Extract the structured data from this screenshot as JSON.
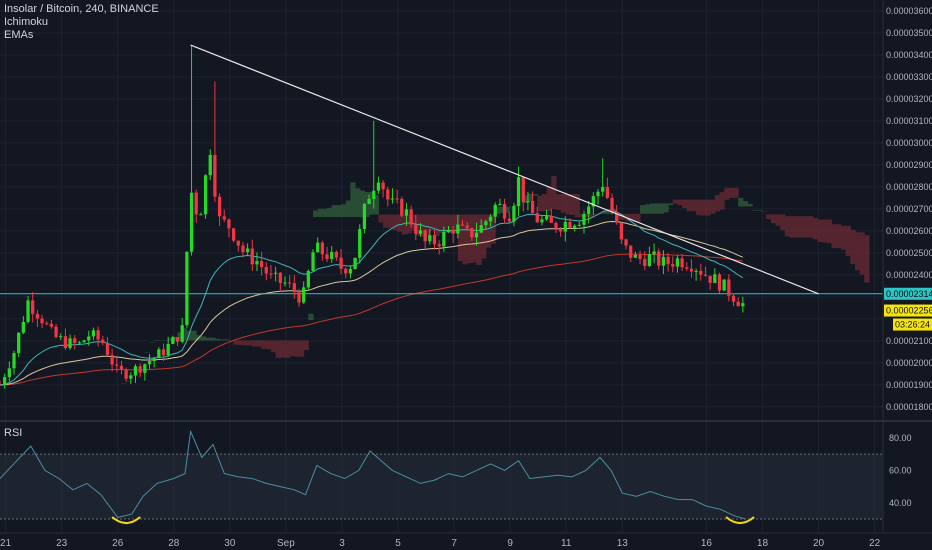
{
  "legend": {
    "symbol": "Insolar / Bitcoin, 240, BINANCE",
    "ichimoku": "Ichimoku",
    "emas": "EMAs"
  },
  "rsi_label": "RSI",
  "price_labels": {
    "horizontal_line": "0.00002314",
    "last_price": "0.00002256",
    "countdown": "03:26:24"
  },
  "colors": {
    "background": "#131722",
    "grid": "#1e2230",
    "up": "#26d926",
    "down": "#f23645",
    "trendline": "#e8e8e8",
    "hline": "#2ec5c5",
    "ema_fast": "#3fb6b6",
    "ema_mid": "#d9c89a",
    "ema_slow": "#c0392b",
    "cloud_bull": "#2f5f3a",
    "cloud_bear": "#6b2a34",
    "rsi_line": "#4a8fa0",
    "rsi_band": "#262b3b",
    "marker": "#f5d90a",
    "last_price_bg": "#f5e50a"
  },
  "chart_data": {
    "type": "candlestick",
    "title": "Insolar / Bitcoin, 240, BINANCE",
    "price_axis": {
      "ylim": [
        1.74e-05,
        3.65e-05
      ],
      "ticks": [
        "0.00001800",
        "0.00001900",
        "0.00002000",
        "0.00002100",
        "0.00002200",
        "0.00002300",
        "0.00002400",
        "0.00002500",
        "0.00002600",
        "0.00002700",
        "0.00002800",
        "0.00002900",
        "0.00003000",
        "0.00003100",
        "0.00003200",
        "0.00003300",
        "0.00003400",
        "0.00003500",
        "0.00003600"
      ]
    },
    "x_axis": {
      "range_days": [
        21.8,
        53.3
      ],
      "ticks": [
        {
          "label": "21",
          "day": 22
        },
        {
          "label": "23",
          "day": 24
        },
        {
          "label": "26",
          "day": 26
        },
        {
          "label": "28",
          "day": 28
        },
        {
          "label": "30",
          "day": 30
        },
        {
          "label": "Sep",
          "day": 32
        },
        {
          "label": "3",
          "day": 34
        },
        {
          "label": "5",
          "day": 36
        },
        {
          "label": "7",
          "day": 38
        },
        {
          "label": "9",
          "day": 40
        },
        {
          "label": "11",
          "day": 42
        },
        {
          "label": "13",
          "day": 44
        },
        {
          "label": "16",
          "day": 47
        },
        {
          "label": "18",
          "day": 49
        },
        {
          "label": "20",
          "day": 51
        },
        {
          "label": "22",
          "day": 53
        }
      ]
    },
    "anchors": [
      [
        21.8,
        1900
      ],
      [
        22.3,
        2050
      ],
      [
        22.8,
        2280
      ],
      [
        23.3,
        2200
      ],
      [
        23.7,
        2120
      ],
      [
        24.2,
        2090
      ],
      [
        24.6,
        2080
      ],
      [
        25.0,
        2130
      ],
      [
        25.5,
        2090
      ],
      [
        26.0,
        1950
      ],
      [
        26.5,
        1960
      ],
      [
        27.0,
        2000
      ],
      [
        27.5,
        2040
      ],
      [
        28.0,
        2100
      ],
      [
        28.3,
        2150
      ],
      [
        28.6,
        2790
      ],
      [
        28.9,
        2650
      ],
      [
        29.3,
        2980
      ],
      [
        29.6,
        2650
      ],
      [
        30.0,
        2620
      ],
      [
        30.5,
        2500
      ],
      [
        31.0,
        2460
      ],
      [
        31.5,
        2380
      ],
      [
        32.0,
        2360
      ],
      [
        32.6,
        2290
      ],
      [
        33.0,
        2520
      ],
      [
        33.5,
        2490
      ],
      [
        34.0,
        2430
      ],
      [
        34.4,
        2450
      ],
      [
        34.9,
        2750
      ],
      [
        35.3,
        2860
      ],
      [
        35.7,
        2720
      ],
      [
        36.2,
        2700
      ],
      [
        36.6,
        2620
      ],
      [
        37.0,
        2540
      ],
      [
        37.5,
        2560
      ],
      [
        38.0,
        2620
      ],
      [
        38.5,
        2580
      ],
      [
        39.0,
        2620
      ],
      [
        39.5,
        2720
      ],
      [
        40.0,
        2680
      ],
      [
        40.3,
        2830
      ],
      [
        40.6,
        2700
      ],
      [
        41.0,
        2650
      ],
      [
        41.5,
        2620
      ],
      [
        42.0,
        2640
      ],
      [
        42.5,
        2660
      ],
      [
        43.0,
        2750
      ],
      [
        43.3,
        2820
      ],
      [
        43.6,
        2700
      ],
      [
        44.0,
        2530
      ],
      [
        44.5,
        2470
      ],
      [
        45.0,
        2480
      ],
      [
        45.5,
        2450
      ],
      [
        46.0,
        2470
      ],
      [
        46.5,
        2450
      ],
      [
        47.0,
        2400
      ],
      [
        47.5,
        2360
      ],
      [
        48.0,
        2300
      ],
      [
        48.4,
        2256
      ]
    ],
    "horizontal_line": 2.314e-05,
    "last_price": 2.256e-05,
    "trendline": [
      [
        28.6,
        3.445e-05
      ],
      [
        51.0,
        2.314e-05
      ]
    ],
    "rsi": {
      "ylim": [
        22,
        88
      ],
      "ticks": [
        40,
        60,
        80
      ],
      "band": [
        30,
        70
      ],
      "series": [
        [
          21.8,
          55
        ],
        [
          22.4,
          66
        ],
        [
          22.9,
          75
        ],
        [
          23.4,
          60
        ],
        [
          23.9,
          55
        ],
        [
          24.4,
          48
        ],
        [
          24.9,
          52
        ],
        [
          25.4,
          45
        ],
        [
          26.0,
          31
        ],
        [
          26.5,
          33
        ],
        [
          26.9,
          44
        ],
        [
          27.4,
          52
        ],
        [
          28.0,
          55
        ],
        [
          28.4,
          58
        ],
        [
          28.6,
          84
        ],
        [
          29.0,
          68
        ],
        [
          29.4,
          76
        ],
        [
          29.8,
          58
        ],
        [
          30.3,
          56
        ],
        [
          30.8,
          55
        ],
        [
          31.3,
          52
        ],
        [
          31.8,
          50
        ],
        [
          32.3,
          48
        ],
        [
          32.7,
          45
        ],
        [
          33.1,
          63
        ],
        [
          33.6,
          58
        ],
        [
          34.1,
          55
        ],
        [
          34.6,
          60
        ],
        [
          35.0,
          72
        ],
        [
          35.4,
          66
        ],
        [
          35.8,
          60
        ],
        [
          36.3,
          56
        ],
        [
          36.8,
          52
        ],
        [
          37.3,
          54
        ],
        [
          37.8,
          58
        ],
        [
          38.3,
          56
        ],
        [
          38.8,
          60
        ],
        [
          39.3,
          64
        ],
        [
          39.8,
          60
        ],
        [
          40.3,
          66
        ],
        [
          40.7,
          55
        ],
        [
          41.2,
          56
        ],
        [
          41.7,
          57
        ],
        [
          42.2,
          56
        ],
        [
          42.7,
          60
        ],
        [
          43.2,
          68
        ],
        [
          43.6,
          60
        ],
        [
          44.0,
          46
        ],
        [
          44.5,
          44
        ],
        [
          45.0,
          47
        ],
        [
          45.5,
          44
        ],
        [
          46.0,
          42
        ],
        [
          46.5,
          42
        ],
        [
          47.0,
          38
        ],
        [
          47.5,
          36
        ],
        [
          48.0,
          32
        ],
        [
          48.4,
          30
        ]
      ]
    }
  }
}
